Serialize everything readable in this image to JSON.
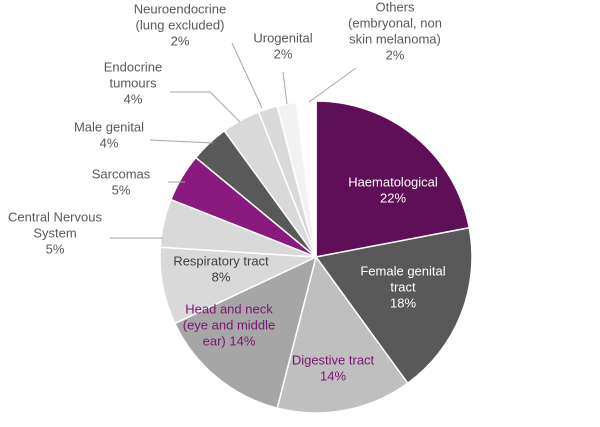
{
  "chart_data": {
    "type": "pie",
    "title": "",
    "unit": "%",
    "slices": [
      {
        "label_lines": [
          "Haematological",
          "22%"
        ],
        "value": 22,
        "color": "#5f0f57",
        "label_color": "#ffffff"
      },
      {
        "label_lines": [
          "Female genital",
          "tract",
          "18%"
        ],
        "value": 18,
        "color": "#595959",
        "label_color": "#ffffff"
      },
      {
        "label_lines": [
          "Digestive tract",
          "14%"
        ],
        "value": 14,
        "color": "#bfbfbf",
        "label_color": "#7a1670"
      },
      {
        "label_lines": [
          "Head and neck",
          "(eye and middle",
          "ear) 14%"
        ],
        "value": 14,
        "color": "#a6a6a6",
        "label_color": "#7a1670"
      },
      {
        "label_lines": [
          "Respiratory tract",
          "8%"
        ],
        "value": 8,
        "color": "#d9d9d9",
        "label_color": "#404040"
      },
      {
        "label_lines": [
          "Central Nervous",
          "System",
          "5%"
        ],
        "value": 5,
        "color": "#d9d9d9",
        "label_color": "#595959"
      },
      {
        "label_lines": [
          "Sarcomas",
          "5%"
        ],
        "value": 5,
        "color": "#8b1a7e",
        "label_color": "#595959"
      },
      {
        "label_lines": [
          "Male genital",
          "4%"
        ],
        "value": 4,
        "color": "#595959",
        "label_color": "#595959"
      },
      {
        "label_lines": [
          "Endocrine",
          "tumours",
          "4%"
        ],
        "value": 4,
        "color": "#d9d9d9",
        "label_color": "#595959"
      },
      {
        "label_lines": [
          "Neuroendocrine",
          "(lung excluded)",
          "2%"
        ],
        "value": 2,
        "color": "#d9d9d9",
        "label_color": "#595959"
      },
      {
        "label_lines": [
          "Urogenital",
          "2%"
        ],
        "value": 2,
        "color": "#f2f2f2",
        "label_color": "#595959"
      },
      {
        "label_lines": [
          "Others",
          "(embryonal, non",
          "skin melanoma)",
          "2%"
        ],
        "value": 2,
        "color": "#ffffff",
        "label_color": "#595959"
      }
    ]
  }
}
